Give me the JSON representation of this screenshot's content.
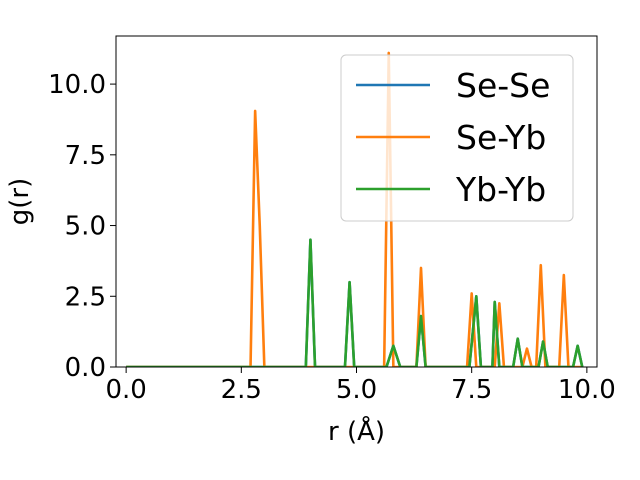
{
  "chart_data": {
    "type": "line",
    "xlabel": "r (Å)",
    "ylabel": "g(r)",
    "xlim": [
      -0.22,
      10.22
    ],
    "ylim": [
      0,
      11.7
    ],
    "xticks": [
      0.0,
      2.5,
      5.0,
      7.5,
      10.0
    ],
    "xtick_labels": [
      "0.0",
      "2.5",
      "5.0",
      "7.5",
      "10.0"
    ],
    "yticks": [
      0.0,
      2.5,
      5.0,
      7.5,
      10.0
    ],
    "ytick_labels": [
      "0.0",
      "2.5",
      "5.0",
      "7.5",
      "10.0"
    ],
    "grid": false,
    "legend_position": "top-right",
    "series": [
      {
        "name": "Se-Se",
        "color": "#1f77b4",
        "points": [
          [
            0.0,
            0
          ],
          [
            3.9,
            0
          ],
          [
            4.0,
            4.5
          ],
          [
            4.1,
            0
          ],
          [
            4.75,
            0
          ],
          [
            4.85,
            3.0
          ],
          [
            4.95,
            0
          ],
          [
            5.65,
            0
          ],
          [
            5.8,
            0.75
          ],
          [
            5.95,
            0
          ],
          [
            6.3,
            0
          ],
          [
            6.4,
            1.8
          ],
          [
            6.5,
            0
          ],
          [
            7.45,
            0
          ],
          [
            7.6,
            2.5
          ],
          [
            7.7,
            0
          ],
          [
            7.95,
            0
          ],
          [
            8.0,
            2.3
          ],
          [
            8.1,
            0
          ],
          [
            8.4,
            0
          ],
          [
            8.5,
            1.0
          ],
          [
            8.6,
            0
          ],
          [
            8.95,
            0
          ],
          [
            9.05,
            0.9
          ],
          [
            9.15,
            0
          ],
          [
            9.7,
            0
          ],
          [
            9.8,
            0.75
          ],
          [
            9.9,
            0
          ]
        ]
      },
      {
        "name": "Se-Yb",
        "color": "#ff7f0e",
        "points": [
          [
            0.0,
            0
          ],
          [
            2.7,
            0
          ],
          [
            2.8,
            9.05
          ],
          [
            2.9,
            5.0
          ],
          [
            3.0,
            0
          ],
          [
            5.6,
            0
          ],
          [
            5.7,
            11.1
          ],
          [
            5.8,
            0
          ],
          [
            6.3,
            0
          ],
          [
            6.4,
            3.5
          ],
          [
            6.5,
            0
          ],
          [
            7.4,
            0
          ],
          [
            7.5,
            2.6
          ],
          [
            7.6,
            0
          ],
          [
            8.0,
            0
          ],
          [
            8.1,
            2.25
          ],
          [
            8.2,
            0
          ],
          [
            8.6,
            0
          ],
          [
            8.7,
            0.65
          ],
          [
            8.8,
            0
          ],
          [
            8.9,
            0
          ],
          [
            9.0,
            3.6
          ],
          [
            9.1,
            0
          ],
          [
            9.4,
            0
          ],
          [
            9.5,
            3.25
          ],
          [
            9.6,
            0
          ],
          [
            9.9,
            0
          ]
        ]
      },
      {
        "name": "Yb-Yb",
        "color": "#2ca02c",
        "points": [
          [
            0.0,
            0
          ],
          [
            3.9,
            0
          ],
          [
            4.0,
            4.5
          ],
          [
            4.1,
            0
          ],
          [
            4.75,
            0
          ],
          [
            4.85,
            3.0
          ],
          [
            4.95,
            0
          ],
          [
            5.65,
            0
          ],
          [
            5.8,
            0.75
          ],
          [
            5.95,
            0
          ],
          [
            6.3,
            0
          ],
          [
            6.4,
            1.8
          ],
          [
            6.5,
            0
          ],
          [
            7.45,
            0
          ],
          [
            7.6,
            2.5
          ],
          [
            7.7,
            0
          ],
          [
            7.95,
            0
          ],
          [
            8.0,
            2.3
          ],
          [
            8.1,
            0
          ],
          [
            8.4,
            0
          ],
          [
            8.5,
            1.0
          ],
          [
            8.6,
            0
          ],
          [
            8.95,
            0
          ],
          [
            9.05,
            0.9
          ],
          [
            9.15,
            0
          ],
          [
            9.7,
            0
          ],
          [
            9.8,
            0.75
          ],
          [
            9.9,
            0
          ]
        ]
      }
    ]
  }
}
